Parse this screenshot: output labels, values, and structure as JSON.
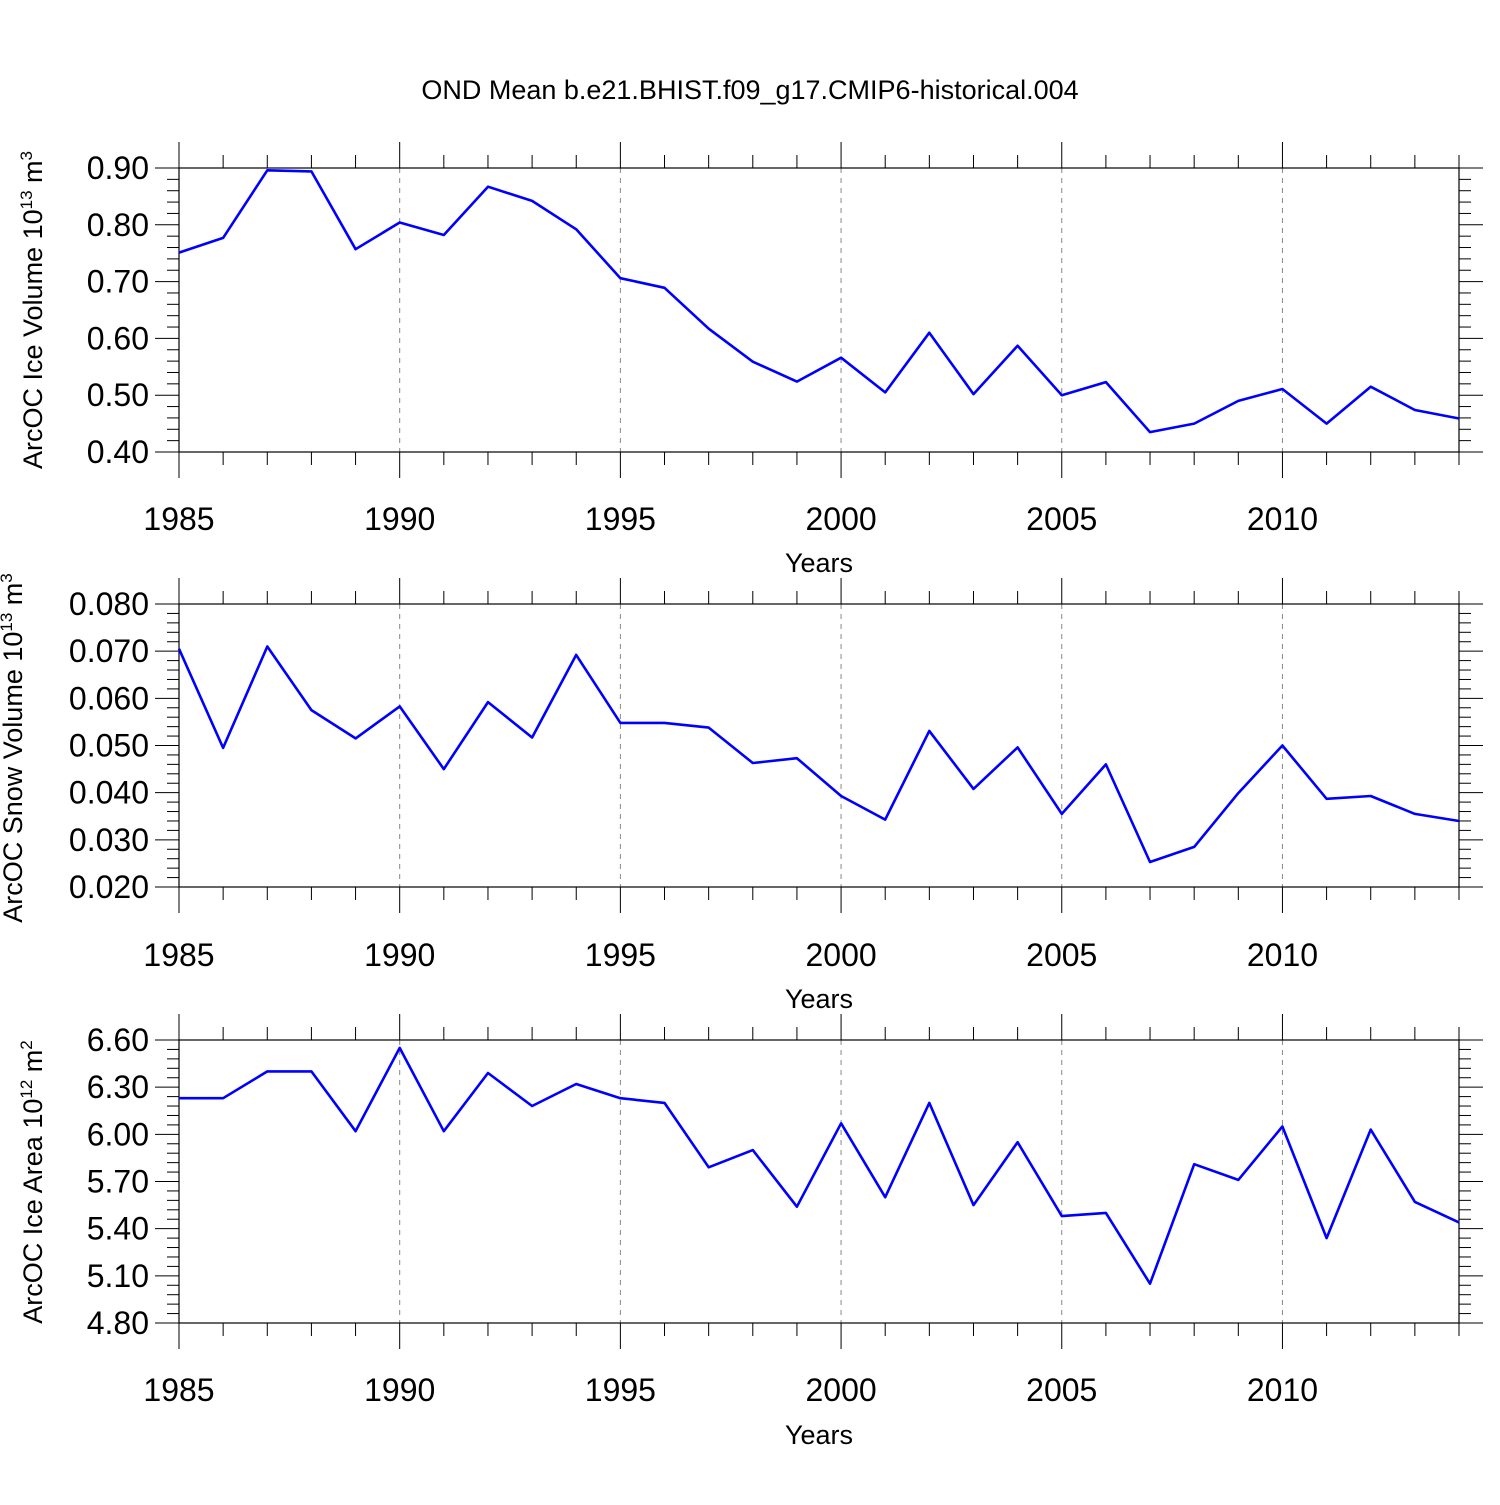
{
  "page": {
    "title": "OND Mean b.e21.BHIST.f09_g17.CMIP6-historical.004",
    "line_color": "#0000ff"
  },
  "chart_data": [
    {
      "type": "line",
      "title": "",
      "xlabel": "Years",
      "ylabel_main": "ArcOC Ice Volume 10",
      "ylabel_sup1": "13",
      "ylabel_unit": " m",
      "ylabel_sup2": "3",
      "ylim": [
        0.4,
        0.9
      ],
      "xlim": [
        1985,
        2014
      ],
      "yticks": [
        0.9,
        0.8,
        0.7,
        0.6,
        0.5,
        0.4
      ],
      "ytick_labels": [
        "0.90",
        "0.80",
        "0.70",
        "0.60",
        "0.50",
        "0.40"
      ],
      "xticks": [
        1985,
        1990,
        1995,
        2000,
        2005,
        2010
      ],
      "xtick_labels": [
        "1985",
        "1990",
        "1995",
        "2000",
        "2005",
        "2010"
      ],
      "grid": "vertical dashed at labeled years",
      "x": [
        1985,
        1986,
        1987,
        1988,
        1989,
        1990,
        1991,
        1992,
        1993,
        1994,
        1995,
        1996,
        1997,
        1998,
        1999,
        2000,
        2001,
        2002,
        2003,
        2004,
        2005,
        2006,
        2007,
        2008,
        2009,
        2010,
        2011,
        2012,
        2013,
        2014
      ],
      "series": [
        {
          "values": [
            0.751,
            0.777,
            0.896,
            0.894,
            0.757,
            0.804,
            0.782,
            0.867,
            0.842,
            0.792,
            0.706,
            0.689,
            0.617,
            0.559,
            0.524,
            0.566,
            0.505,
            0.61,
            0.502,
            0.587,
            0.5,
            0.523,
            0.435,
            0.45,
            0.49,
            0.511,
            0.45,
            0.515,
            0.474,
            0.459
          ]
        }
      ]
    },
    {
      "type": "line",
      "title": "",
      "xlabel": "Years",
      "ylabel_main": "ArcOC Snow Volume 10",
      "ylabel_sup1": "13",
      "ylabel_unit": " m",
      "ylabel_sup2": "3",
      "ylim": [
        0.02,
        0.08
      ],
      "xlim": [
        1985,
        2014
      ],
      "yticks": [
        0.08,
        0.07,
        0.06,
        0.05,
        0.04,
        0.03,
        0.02
      ],
      "ytick_labels": [
        "0.080",
        "0.070",
        "0.060",
        "0.050",
        "0.040",
        "0.030",
        "0.020"
      ],
      "xticks": [
        1985,
        1990,
        1995,
        2000,
        2005,
        2010
      ],
      "xtick_labels": [
        "1985",
        "1990",
        "1995",
        "2000",
        "2005",
        "2010"
      ],
      "grid": "vertical dashed at labeled years",
      "x": [
        1985,
        1986,
        1987,
        1988,
        1989,
        1990,
        1991,
        1992,
        1993,
        1994,
        1995,
        1996,
        1997,
        1998,
        1999,
        2000,
        2001,
        2002,
        2003,
        2004,
        2005,
        2006,
        2007,
        2008,
        2009,
        2010,
        2011,
        2012,
        2013,
        2014
      ],
      "series": [
        {
          "values": [
            0.0705,
            0.0495,
            0.071,
            0.0575,
            0.0515,
            0.0583,
            0.045,
            0.0592,
            0.0517,
            0.0692,
            0.0548,
            0.0548,
            0.0538,
            0.0463,
            0.0473,
            0.0393,
            0.0343,
            0.0531,
            0.0408,
            0.0496,
            0.0355,
            0.046,
            0.0253,
            0.0285,
            0.0399,
            0.05,
            0.0387,
            0.0393,
            0.0355,
            0.034
          ]
        }
      ]
    },
    {
      "type": "line",
      "title": "",
      "xlabel": "Years",
      "ylabel_main": "ArcOC Ice Area 10",
      "ylabel_sup1": "12",
      "ylabel_unit": " m",
      "ylabel_sup2": "2",
      "ylim": [
        4.8,
        6.6
      ],
      "xlim": [
        1985,
        2014
      ],
      "yticks": [
        6.6,
        6.3,
        6.0,
        5.7,
        5.4,
        5.1,
        4.8
      ],
      "ytick_labels": [
        "6.60",
        "6.30",
        "6.00",
        "5.70",
        "5.40",
        "5.10",
        "4.80"
      ],
      "xticks": [
        1985,
        1990,
        1995,
        2000,
        2005,
        2010
      ],
      "xtick_labels": [
        "1985",
        "1990",
        "1995",
        "2000",
        "2005",
        "2010"
      ],
      "grid": "vertical dashed at labeled years",
      "x": [
        1985,
        1986,
        1987,
        1988,
        1989,
        1990,
        1991,
        1992,
        1993,
        1994,
        1995,
        1996,
        1997,
        1998,
        1999,
        2000,
        2001,
        2002,
        2003,
        2004,
        2005,
        2006,
        2007,
        2008,
        2009,
        2010,
        2011,
        2012,
        2013,
        2014
      ],
      "series": [
        {
          "values": [
            6.23,
            6.23,
            6.4,
            6.4,
            6.02,
            6.55,
            6.02,
            6.39,
            6.18,
            6.32,
            6.23,
            6.2,
            5.79,
            5.9,
            5.54,
            6.07,
            5.6,
            6.2,
            5.55,
            5.95,
            5.48,
            5.5,
            5.05,
            5.81,
            5.71,
            6.05,
            5.34,
            6.03,
            5.57,
            5.44
          ]
        }
      ]
    }
  ]
}
